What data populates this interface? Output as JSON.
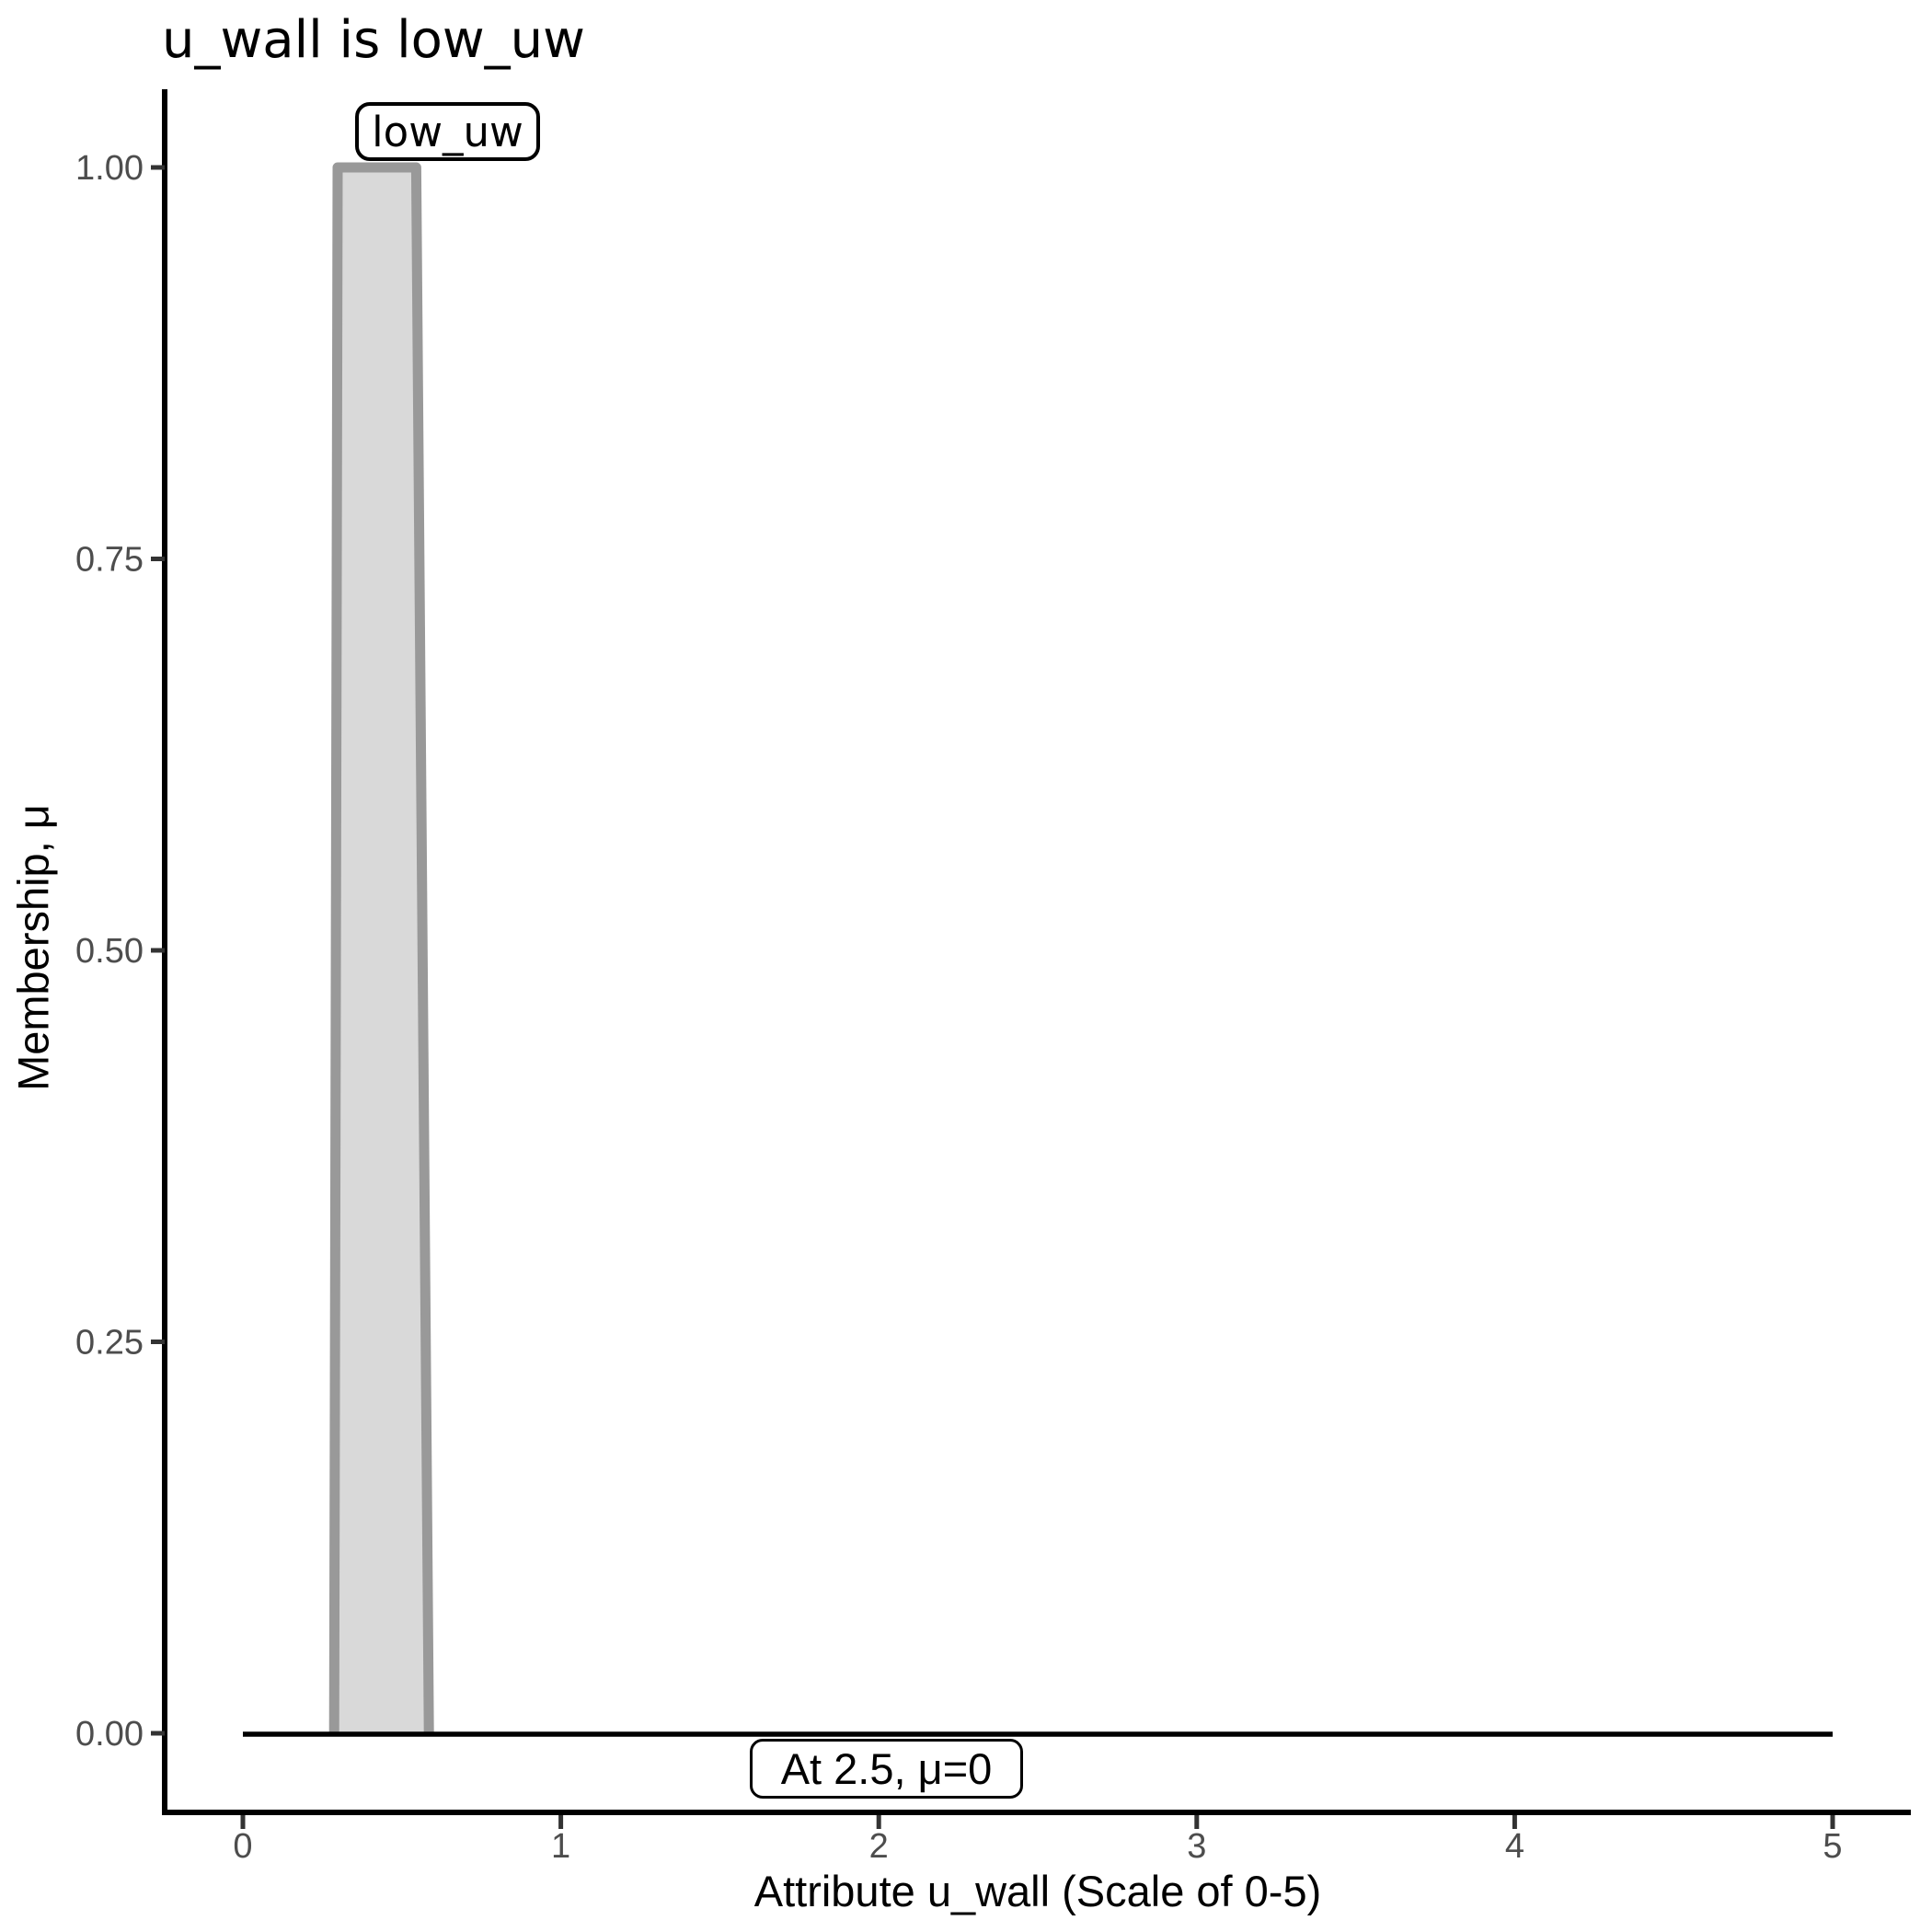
{
  "chart_data": {
    "type": "area",
    "title": "u_wall is low_uw",
    "xlabel": "Attribute u_wall (Scale of 0-5)",
    "ylabel": "Membership, μ",
    "xlim": [
      0,
      5
    ],
    "ylim": [
      0,
      1
    ],
    "grid": false,
    "legend": "none",
    "x_ticks": [
      {
        "v": 0,
        "label": "0"
      },
      {
        "v": 1,
        "label": "1"
      },
      {
        "v": 2,
        "label": "2"
      },
      {
        "v": 3,
        "label": "3"
      },
      {
        "v": 4,
        "label": "4"
      },
      {
        "v": 5,
        "label": "5"
      }
    ],
    "y_ticks": [
      {
        "v": 0.0,
        "label": "0.00"
      },
      {
        "v": 0.25,
        "label": "0.25"
      },
      {
        "v": 0.5,
        "label": "0.50"
      },
      {
        "v": 0.75,
        "label": "0.75"
      },
      {
        "v": 1.0,
        "label": "1.00"
      }
    ],
    "series": [
      {
        "name": "low_uw",
        "kind": "trapezoid-membership-function",
        "x": [
          0.287,
          0.298,
          0.545,
          0.585
        ],
        "y": [
          0,
          1,
          1,
          0
        ]
      },
      {
        "name": "membership-baseline",
        "kind": "line",
        "x": [
          0,
          5
        ],
        "y": [
          0,
          0
        ]
      }
    ],
    "annotations": [
      {
        "text": "low_uw",
        "x": 0.64,
        "y": 1.02
      },
      {
        "text": "At 2.5, μ=0",
        "x": 2.03,
        "y": -0.02
      }
    ],
    "colors": {
      "mf_fill": "#d9d9d9",
      "mf_stroke": "#999999",
      "baseline": "#000000",
      "axis_line": "#000000",
      "tick_mark": "#333333",
      "tick_label": "#4d4d4d"
    }
  }
}
